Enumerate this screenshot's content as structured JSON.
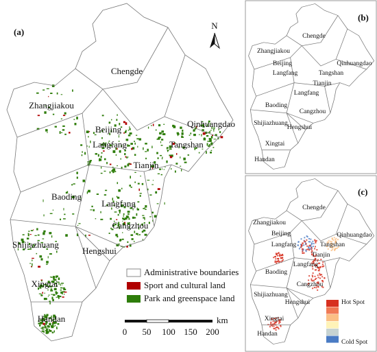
{
  "panels": [
    {
      "label": "(a)",
      "regions": [
        "Chengde",
        "Zhangjiakou",
        "Beijing",
        "Langfang",
        "Qinhuangdao",
        "Tangshan",
        "Tianjin",
        "Langfang",
        "Baoding",
        "Cangzhou",
        "Shijiazhuang",
        "Hengshui",
        "Xingtai",
        "Handan"
      ]
    },
    {
      "label": "(b)",
      "regions": [
        "Chengde",
        "Zhangjiakou",
        "Beijing",
        "Langfang",
        "Qinhuangdao",
        "Tangshan",
        "Tianjin",
        "Langfang",
        "Baoding",
        "Cangzhou",
        "Shijiazhuang",
        "Hengshui",
        "Xingtai",
        "Handan"
      ]
    },
    {
      "label": "(c)",
      "regions": [
        "Chengde",
        "Zhangjiakou",
        "Beijing",
        "Langfang",
        "Qinhuangdao",
        "Tangshan",
        "Tianjin",
        "Langfang",
        "Baoding",
        "Cangzhou",
        "Shijiazhuang",
        "Hengshui",
        "Xingtai",
        "Handan"
      ]
    }
  ],
  "north_arrow": "N",
  "legend": {
    "items": [
      "Administrative boundaries",
      "Sport and cultural land",
      "Park and greenspace land"
    ]
  },
  "scale_bar": {
    "unit": "km",
    "ticks": [
      0,
      50,
      100,
      150,
      200
    ]
  },
  "hotspot_legend": {
    "top": "Hot Spot",
    "bottom": "Cold Spot"
  }
}
